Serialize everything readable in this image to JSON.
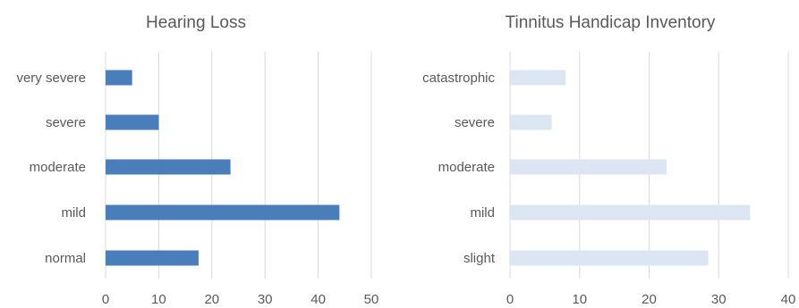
{
  "chart_data": [
    {
      "type": "bar",
      "orientation": "horizontal",
      "title": "Hearing Loss",
      "categories": [
        "very severe",
        "severe",
        "moderate",
        "mild",
        "normal"
      ],
      "values": [
        5,
        10,
        23.5,
        44,
        17.5
      ],
      "xlim": [
        0,
        50
      ],
      "ticks": [
        0,
        10,
        20,
        30,
        40,
        50
      ],
      "grid": true,
      "color": "#4a7ebb"
    },
    {
      "type": "bar",
      "orientation": "horizontal",
      "title": "Tinnitus Handicap Inventory",
      "categories": [
        "catastrophic",
        "severe",
        "moderate",
        "mild",
        "slight"
      ],
      "values": [
        8,
        6,
        22.5,
        34.5,
        28.5
      ],
      "xlim": [
        0,
        40
      ],
      "ticks": [
        0,
        10,
        20,
        30,
        40
      ],
      "grid": true,
      "color": "#dce6f2"
    }
  ]
}
